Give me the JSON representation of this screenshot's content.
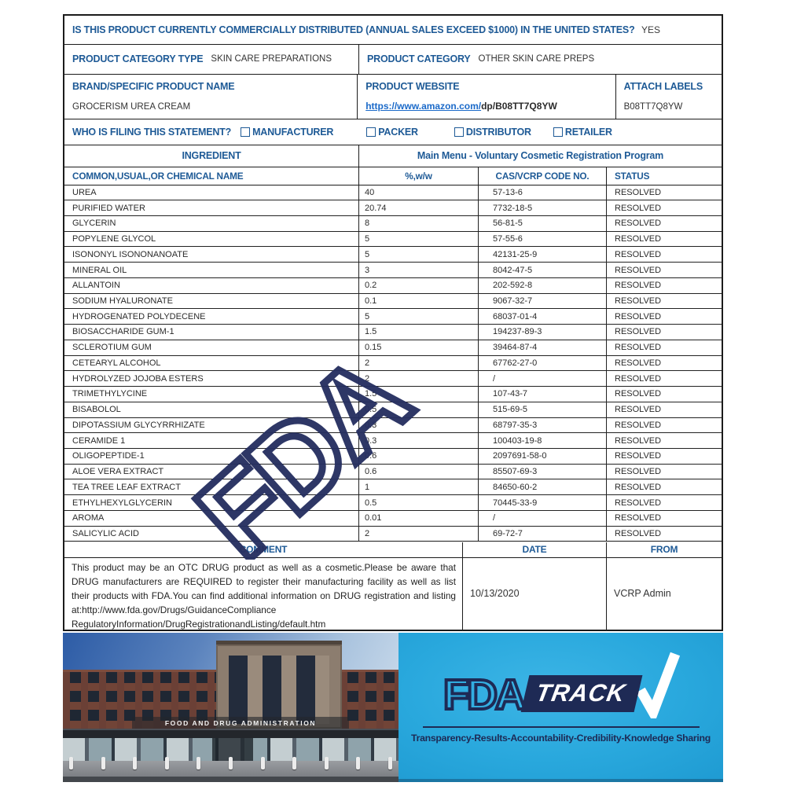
{
  "form": {
    "distribution_question": "IS THIS PRODUCT CURRENTLY COMMERCIALLY DISTRIBUTED (ANNUAL SALES EXCEED $1000) IN THE UNITED STATES?",
    "distribution_answer": "YES",
    "product_category_type_label": "PRODUCT CATEGORY TYPE",
    "product_category_type_value": "SKIN CARE PREPARATIONS",
    "product_category_label": "PRODUCT CATEGORY",
    "product_category_value": "OTHER SKIN CARE PREPS",
    "brand_label": "BRAND/SPECIFIC PRODUCT NAME",
    "brand_value": "GROCERISM UREA CREAM",
    "website_label": "PRODUCT WEBSITE",
    "website_link": "https://www.amazon.com/",
    "website_rest": "dp/B08TT7Q8YW",
    "attach_labels_label": "ATTACH LABELS",
    "attach_labels_value": "B08TT7Q8YW",
    "filing_question": "WHO IS FILING THIS STATEMENT?",
    "filing_options": [
      "MANUFACTURER",
      "PACKER",
      "DISTRIBUTOR",
      "RETAILER"
    ]
  },
  "ingredients": {
    "section_label": "INGREDIENT",
    "section_title": "Main Menu - Voluntary Cosmetic Registration Program",
    "columns": [
      "COMMON,USUAL,OR CHEMICAL NAME",
      "%,w/w",
      "CAS/VCRP CODE NO.",
      "STATUS"
    ],
    "rows": [
      {
        "name": "UREA",
        "pct": "40",
        "cas": "57-13-6",
        "status": "RESOLVED"
      },
      {
        "name": "PURIFIED WATER",
        "pct": "20.74",
        "cas": "7732-18-5",
        "status": "RESOLVED"
      },
      {
        "name": "GLYCERIN",
        "pct": "8",
        "cas": "56-81-5",
        "status": "RESOLVED"
      },
      {
        "name": "POPYLENE GLYCOL",
        "pct": "5",
        "cas": "57-55-6",
        "status": "RESOLVED"
      },
      {
        "name": "ISONONYL ISONONANOATE",
        "pct": "5",
        "cas": "42131-25-9",
        "status": "RESOLVED"
      },
      {
        "name": "MINERAL OIL",
        "pct": "3",
        "cas": "8042-47-5",
        "status": "RESOLVED"
      },
      {
        "name": "ALLANTOIN",
        "pct": "0.2",
        "cas": "202-592-8",
        "status": "RESOLVED"
      },
      {
        "name": "SODIUM HYALURONATE",
        "pct": "0.1",
        "cas": "9067-32-7",
        "status": "RESOLVED"
      },
      {
        "name": "HYDROGENATED POLYDECENE",
        "pct": "5",
        "cas": "68037-01-4",
        "status": "RESOLVED"
      },
      {
        "name": "BIOSACCHARIDE GUM-1",
        "pct": "1.5",
        "cas": "194237-89-3",
        "status": "RESOLVED"
      },
      {
        "name": "SCLEROTIUM GUM",
        "pct": "0.15",
        "cas": "39464-87-4",
        "status": "RESOLVED"
      },
      {
        "name": "CETEARYL ALCOHOL",
        "pct": "2",
        "cas": "67762-27-0",
        "status": "RESOLVED"
      },
      {
        "name": "HYDROLYZED JOJOBA ESTERS",
        "pct": "2",
        "cas": "/",
        "status": "RESOLVED"
      },
      {
        "name": "TRIMETHYLYCINE",
        "pct": "1.5",
        "cas": "107-43-7",
        "status": "RESOLVED"
      },
      {
        "name": "BISABOLOL",
        "pct": "0.5",
        "cas": "515-69-5",
        "status": "RESOLVED"
      },
      {
        "name": "DIPOTASSIUM GLYCYRRHIZATE",
        "pct": "0.3",
        "cas": "68797-35-3",
        "status": "RESOLVED"
      },
      {
        "name": "CERAMIDE 1",
        "pct": "0.3",
        "cas": "100403-19-8",
        "status": "RESOLVED"
      },
      {
        "name": "OLIGOPEPTIDE-1",
        "pct": "0.6",
        "cas": "2097691-58-0",
        "status": "RESOLVED"
      },
      {
        "name": "ALOE VERA EXTRACT",
        "pct": "0.6",
        "cas": "85507-69-3",
        "status": "RESOLVED"
      },
      {
        "name": "TEA TREE LEAF EXTRACT",
        "pct": "1",
        "cas": "84650-60-2",
        "status": "RESOLVED"
      },
      {
        "name": "ETHYLHEXYLGLYCERIN",
        "pct": "0.5",
        "cas": "70445-33-9",
        "status": "RESOLVED"
      },
      {
        "name": "AROMA",
        "pct": "0.01",
        "cas": "/",
        "status": "RESOLVED"
      },
      {
        "name": "SALICYLIC ACID",
        "pct": "2",
        "cas": "69-72-7",
        "status": "RESOLVED"
      }
    ]
  },
  "comment": {
    "comment_header": "COMMENT",
    "date_header": "DATE",
    "from_header": "FROM",
    "text": "This product may be an OTC DRUG product as well as a cosmetic.Please be aware that DRUG manufacturers are REQUIRED to register their manufacturing facility as well as list their products with FDA.You can find additional information on DRUG registration and listing at:http://www.fda.gov/Drugs/GuidanceCompliance RegulatoryInformation/DrugRegistrationandListing/default.htm",
    "date": "10/13/2020",
    "from": "VCRP Admin"
  },
  "watermark": {
    "text": "FDA"
  },
  "banner": {
    "building_sign": "FOOD AND DRUG ADMINISTRATION",
    "logo_fda": "FDA",
    "logo_track": "TRACK",
    "tagline": "Transparency-Results-Accountability-Credibility-Knowledge Sharing",
    "colors": {
      "cyan": "#29a8dd",
      "navy": "#1e2a55"
    }
  }
}
